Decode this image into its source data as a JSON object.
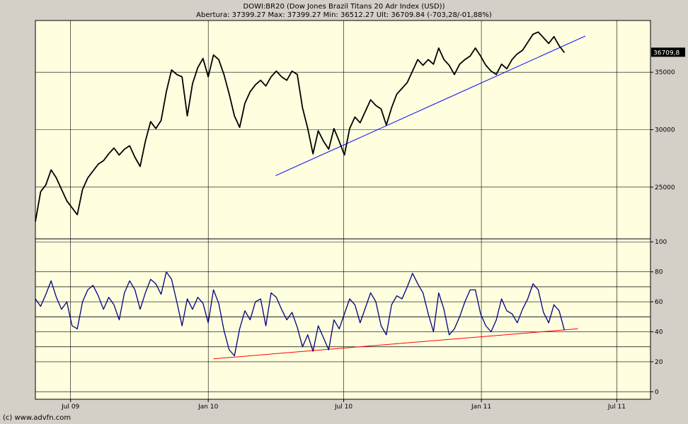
{
  "header": {
    "title": "DOWI:BR20 (Dow Jones Brazil Titans 20 Adr Index (USD))",
    "stats": "Abertura: 37399.27 Max: 37399.27 Min: 36512.27 Ult: 36709.84 (-703,28/-01,88%)"
  },
  "footer": {
    "copyright": "(c) www.advfn.com"
  },
  "colors": {
    "plot_bg": "#ffffe0",
    "frame_bg": "#d4d0c8",
    "price_line": "#000000",
    "rsi_line": "#000080",
    "price_trend": "#0000ff",
    "rsi_trend": "#ff0000",
    "last_badge_bg": "#000000",
    "last_badge_fg": "#ffffff"
  },
  "chart_data": [
    {
      "type": "line",
      "panel": "price",
      "last_value_label": "36709,8",
      "ylim": [
        20500,
        39500
      ],
      "y_ticks": [
        25000,
        30000,
        35000
      ],
      "y_tick_labels": [
        "25000",
        "30000",
        "35000"
      ],
      "x_ticks": [
        "2009-07-01",
        "2010-01-01",
        "2010-07-01",
        "2011-01-01",
        "2011-07-01"
      ],
      "x_tick_labels": [
        "Jul 09",
        "Jan 10",
        "Jul 10",
        "Jan 11",
        "Jul 11"
      ],
      "xlim": [
        "2009-05-15",
        "2011-08-15"
      ],
      "grid": true,
      "series": [
        {
          "values": [
            [
              "2009-05-15",
              22000
            ],
            [
              "2009-05-22",
              24600
            ],
            [
              "2009-05-29",
              25200
            ],
            [
              "2009-06-05",
              26500
            ],
            [
              "2009-06-12",
              25800
            ],
            [
              "2009-06-19",
              24800
            ],
            [
              "2009-06-26",
              23800
            ],
            [
              "2009-07-03",
              23200
            ],
            [
              "2009-07-10",
              22600
            ],
            [
              "2009-07-17",
              24800
            ],
            [
              "2009-07-24",
              25800
            ],
            [
              "2009-07-31",
              26400
            ],
            [
              "2009-08-07",
              27000
            ],
            [
              "2009-08-14",
              27300
            ],
            [
              "2009-08-21",
              27900
            ],
            [
              "2009-08-28",
              28400
            ],
            [
              "2009-09-04",
              27800
            ],
            [
              "2009-09-11",
              28300
            ],
            [
              "2009-09-18",
              28600
            ],
            [
              "2009-09-25",
              27600
            ],
            [
              "2009-10-02",
              26800
            ],
            [
              "2009-10-09",
              29000
            ],
            [
              "2009-10-16",
              30700
            ],
            [
              "2009-10-23",
              30100
            ],
            [
              "2009-10-30",
              30800
            ],
            [
              "2009-11-06",
              33300
            ],
            [
              "2009-11-13",
              35200
            ],
            [
              "2009-11-20",
              34800
            ],
            [
              "2009-11-27",
              34600
            ],
            [
              "2009-12-04",
              31200
            ],
            [
              "2009-12-11",
              34000
            ],
            [
              "2009-12-18",
              35400
            ],
            [
              "2009-12-25",
              36200
            ],
            [
              "2010-01-01",
              34600
            ],
            [
              "2010-01-08",
              36500
            ],
            [
              "2010-01-15",
              36100
            ],
            [
              "2010-01-22",
              34800
            ],
            [
              "2010-01-29",
              33100
            ],
            [
              "2010-02-05",
              31200
            ],
            [
              "2010-02-12",
              30200
            ],
            [
              "2010-02-19",
              32300
            ],
            [
              "2010-02-26",
              33300
            ],
            [
              "2010-03-05",
              33900
            ],
            [
              "2010-03-12",
              34300
            ],
            [
              "2010-03-19",
              33800
            ],
            [
              "2010-03-26",
              34600
            ],
            [
              "2010-04-02",
              35100
            ],
            [
              "2010-04-09",
              34600
            ],
            [
              "2010-04-16",
              34300
            ],
            [
              "2010-04-23",
              35100
            ],
            [
              "2010-04-30",
              34800
            ],
            [
              "2010-05-07",
              31900
            ],
            [
              "2010-05-14",
              30100
            ],
            [
              "2010-05-21",
              27900
            ],
            [
              "2010-05-28",
              29900
            ],
            [
              "2010-06-04",
              29000
            ],
            [
              "2010-06-11",
              28300
            ],
            [
              "2010-06-18",
              30100
            ],
            [
              "2010-06-25",
              29000
            ],
            [
              "2010-07-02",
              27800
            ],
            [
              "2010-07-09",
              30100
            ],
            [
              "2010-07-16",
              31100
            ],
            [
              "2010-07-23",
              30600
            ],
            [
              "2010-07-30",
              31600
            ],
            [
              "2010-08-06",
              32600
            ],
            [
              "2010-08-13",
              32100
            ],
            [
              "2010-08-20",
              31800
            ],
            [
              "2010-08-27",
              30400
            ],
            [
              "2010-09-03",
              31900
            ],
            [
              "2010-09-10",
              33100
            ],
            [
              "2010-09-17",
              33600
            ],
            [
              "2010-09-24",
              34100
            ],
            [
              "2010-10-01",
              35100
            ],
            [
              "2010-10-08",
              36100
            ],
            [
              "2010-10-15",
              35600
            ],
            [
              "2010-10-22",
              36100
            ],
            [
              "2010-10-29",
              35700
            ],
            [
              "2010-11-05",
              37100
            ],
            [
              "2010-11-12",
              36100
            ],
            [
              "2010-11-19",
              35600
            ],
            [
              "2010-11-26",
              34800
            ],
            [
              "2010-12-03",
              35700
            ],
            [
              "2010-12-10",
              36100
            ],
            [
              "2010-12-17",
              36400
            ],
            [
              "2010-12-24",
              37100
            ],
            [
              "2010-12-31",
              36400
            ],
            [
              "2011-01-07",
              35600
            ],
            [
              "2011-01-14",
              35100
            ],
            [
              "2011-01-21",
              34800
            ],
            [
              "2011-01-28",
              35700
            ],
            [
              "2011-02-04",
              35300
            ],
            [
              "2011-02-11",
              36100
            ],
            [
              "2011-02-18",
              36600
            ],
            [
              "2011-02-25",
              36900
            ],
            [
              "2011-03-04",
              37600
            ],
            [
              "2011-03-11",
              38300
            ],
            [
              "2011-03-18",
              38500
            ],
            [
              "2011-03-25",
              38000
            ],
            [
              "2011-04-01",
              37500
            ],
            [
              "2011-04-08",
              38100
            ],
            [
              "2011-04-15",
              37300
            ],
            [
              "2011-04-22",
              36709.84
            ]
          ]
        }
      ]
    },
    {
      "type": "line",
      "panel": "rsi",
      "ylim": [
        -5,
        102
      ],
      "y_ticks": [
        0,
        20,
        40,
        60,
        80,
        100
      ],
      "y_tick_labels": [
        "0",
        "20",
        "40",
        "60",
        "80",
        "100"
      ],
      "x_ticks": [
        "2009-07-01",
        "2010-01-01",
        "2010-07-01",
        "2011-01-01",
        "2011-07-01"
      ],
      "x_tick_labels": [
        "Jul 09",
        "Jan 10",
        "Jul 10",
        "Jan 11",
        "Jul 11"
      ],
      "xlim": [
        "2009-05-15",
        "2011-08-15"
      ],
      "reference_lines": [
        30,
        50,
        70
      ],
      "series": [
        {
          "values": [
            [
              "2009-05-15",
              62
            ],
            [
              "2009-05-22",
              57
            ],
            [
              "2009-05-29",
              65
            ],
            [
              "2009-06-05",
              74
            ],
            [
              "2009-06-12",
              63
            ],
            [
              "2009-06-19",
              55
            ],
            [
              "2009-06-26",
              60
            ],
            [
              "2009-07-03",
              44
            ],
            [
              "2009-07-10",
              42
            ],
            [
              "2009-07-17",
              60
            ],
            [
              "2009-07-24",
              68
            ],
            [
              "2009-07-31",
              71
            ],
            [
              "2009-08-07",
              64
            ],
            [
              "2009-08-14",
              55
            ],
            [
              "2009-08-21",
              63
            ],
            [
              "2009-08-28",
              58
            ],
            [
              "2009-09-04",
              48
            ],
            [
              "2009-09-11",
              66
            ],
            [
              "2009-09-18",
              74
            ],
            [
              "2009-09-25",
              68
            ],
            [
              "2009-10-02",
              55
            ],
            [
              "2009-10-09",
              66
            ],
            [
              "2009-10-16",
              75
            ],
            [
              "2009-10-23",
              72
            ],
            [
              "2009-10-30",
              65
            ],
            [
              "2009-11-06",
              80
            ],
            [
              "2009-11-13",
              75
            ],
            [
              "2009-11-20",
              60
            ],
            [
              "2009-11-27",
              44
            ],
            [
              "2009-12-04",
              62
            ],
            [
              "2009-12-11",
              55
            ],
            [
              "2009-12-18",
              63
            ],
            [
              "2009-12-25",
              59
            ],
            [
              "2010-01-01",
              46
            ],
            [
              "2010-01-08",
              68
            ],
            [
              "2010-01-15",
              59
            ],
            [
              "2010-01-22",
              41
            ],
            [
              "2010-01-29",
              28
            ],
            [
              "2010-02-05",
              24
            ],
            [
              "2010-02-12",
              42
            ],
            [
              "2010-02-19",
              54
            ],
            [
              "2010-02-26",
              48
            ],
            [
              "2010-03-05",
              60
            ],
            [
              "2010-03-12",
              62
            ],
            [
              "2010-03-19",
              44
            ],
            [
              "2010-03-26",
              66
            ],
            [
              "2010-04-02",
              63
            ],
            [
              "2010-04-09",
              55
            ],
            [
              "2010-04-16",
              48
            ],
            [
              "2010-04-23",
              53
            ],
            [
              "2010-04-30",
              43
            ],
            [
              "2010-05-07",
              30
            ],
            [
              "2010-05-14",
              38
            ],
            [
              "2010-05-21",
              27
            ],
            [
              "2010-05-28",
              44
            ],
            [
              "2010-06-04",
              36
            ],
            [
              "2010-06-11",
              28
            ],
            [
              "2010-06-18",
              48
            ],
            [
              "2010-06-25",
              42
            ],
            [
              "2010-07-02",
              52
            ],
            [
              "2010-07-09",
              62
            ],
            [
              "2010-07-16",
              58
            ],
            [
              "2010-07-23",
              46
            ],
            [
              "2010-07-30",
              56
            ],
            [
              "2010-08-06",
              66
            ],
            [
              "2010-08-13",
              60
            ],
            [
              "2010-08-20",
              44
            ],
            [
              "2010-08-27",
              38
            ],
            [
              "2010-09-03",
              58
            ],
            [
              "2010-09-10",
              64
            ],
            [
              "2010-09-17",
              62
            ],
            [
              "2010-09-24",
              70
            ],
            [
              "2010-10-01",
              79
            ],
            [
              "2010-10-08",
              72
            ],
            [
              "2010-10-15",
              66
            ],
            [
              "2010-10-22",
              52
            ],
            [
              "2010-10-29",
              40
            ],
            [
              "2010-11-05",
              66
            ],
            [
              "2010-11-12",
              55
            ],
            [
              "2010-11-19",
              38
            ],
            [
              "2010-11-26",
              42
            ],
            [
              "2010-12-03",
              50
            ],
            [
              "2010-12-10",
              60
            ],
            [
              "2010-12-17",
              68
            ],
            [
              "2010-12-24",
              68
            ],
            [
              "2010-12-31",
              52
            ],
            [
              "2011-01-07",
              44
            ],
            [
              "2011-01-14",
              40
            ],
            [
              "2011-01-21",
              48
            ],
            [
              "2011-01-28",
              62
            ],
            [
              "2011-02-04",
              54
            ],
            [
              "2011-02-11",
              52
            ],
            [
              "2011-02-18",
              46
            ],
            [
              "2011-02-25",
              55
            ],
            [
              "2011-03-04",
              62
            ],
            [
              "2011-03-11",
              72
            ],
            [
              "2011-03-18",
              68
            ],
            [
              "2011-03-25",
              53
            ],
            [
              "2011-04-01",
              46
            ],
            [
              "2011-04-08",
              58
            ],
            [
              "2011-04-15",
              54
            ],
            [
              "2011-04-22",
              41
            ]
          ]
        }
      ]
    }
  ],
  "trendlines": {
    "price": {
      "start": [
        "2010-04-01",
        26000
      ],
      "end": [
        "2011-05-20",
        38150
      ]
    },
    "rsi": {
      "start": [
        "2010-01-08",
        22
      ],
      "end": [
        "2011-05-10",
        42
      ]
    }
  }
}
